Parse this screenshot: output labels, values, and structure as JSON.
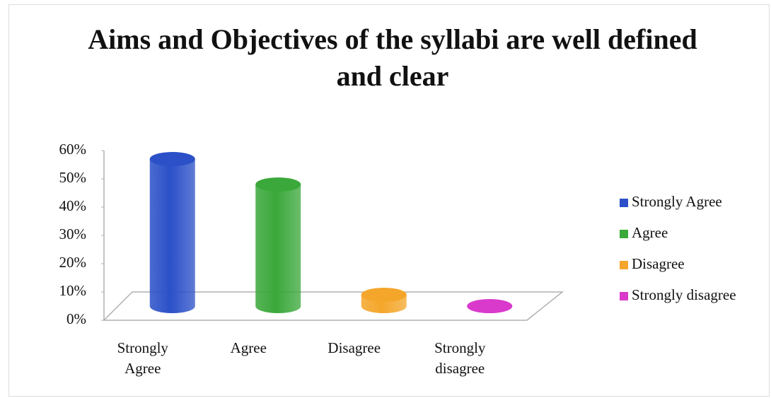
{
  "chart_data": {
    "type": "bar3d",
    "title": "Aims and Objectives of the syllabi are well defined and clear",
    "categories": [
      "Strongly Agree",
      "Agree",
      "Disagree",
      "Strongly disagree"
    ],
    "values": [
      52,
      43,
      4,
      0
    ],
    "colors": [
      "#2b50c8",
      "#3aa83a",
      "#f4a62a",
      "#d93acb"
    ],
    "ylim": [
      0,
      60
    ],
    "yticks": [
      {
        "value": 0,
        "label": "0%"
      },
      {
        "value": 10,
        "label": "10%"
      },
      {
        "value": 20,
        "label": "20%"
      },
      {
        "value": 30,
        "label": "30%"
      },
      {
        "value": 40,
        "label": "40%"
      },
      {
        "value": 50,
        "label": "50%"
      },
      {
        "value": 60,
        "label": "60%"
      }
    ],
    "legend": "right"
  }
}
